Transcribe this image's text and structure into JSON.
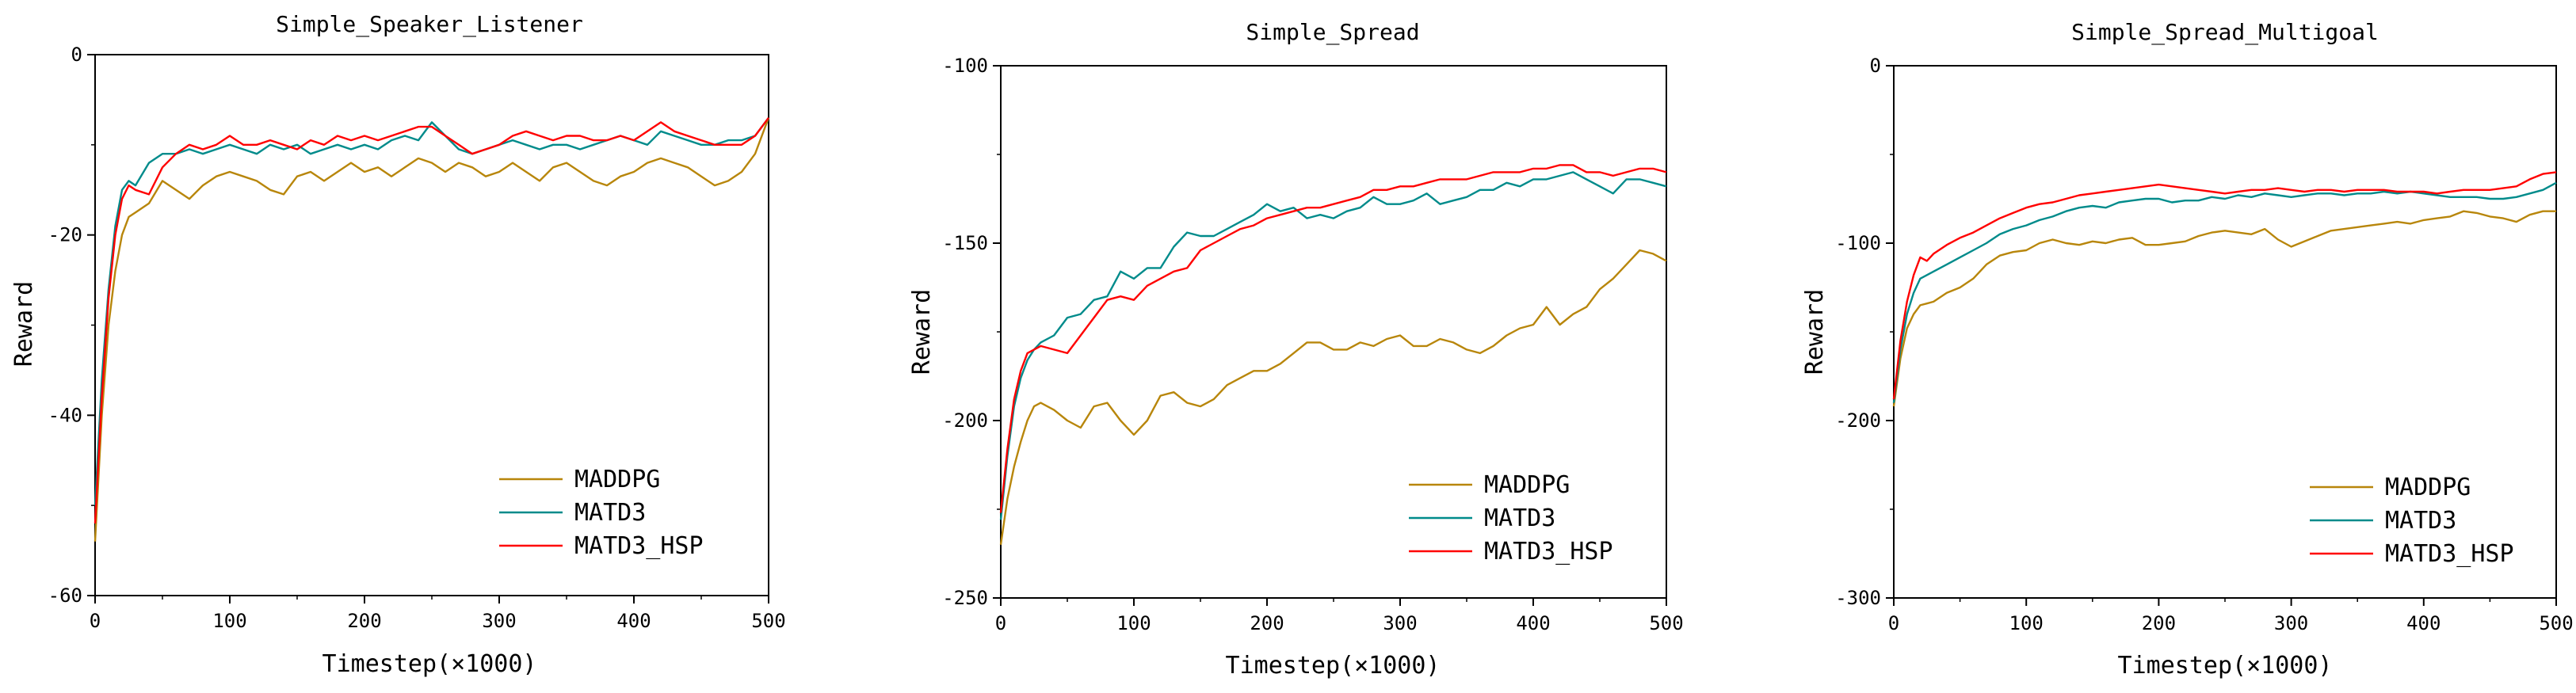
{
  "series_styles": [
    {
      "name": "MADDPG",
      "color": "#b8860b"
    },
    {
      "name": "MATD3",
      "color": "#008b8b"
    },
    {
      "name": "MATD3_HSP",
      "color": "#ff0000"
    }
  ],
  "chart_data": [
    {
      "type": "line",
      "title": "Simple_Speaker_Listener",
      "xlabel": "Timestep(×1000)",
      "ylabel": "Reward",
      "xlim": [
        0,
        500
      ],
      "ylim": [
        -60,
        0
      ],
      "xticks": [
        0,
        100,
        200,
        300,
        400,
        500
      ],
      "yticks": [
        -60,
        -40,
        -20,
        0
      ],
      "legend": "bottom-right",
      "series": [
        {
          "name": "MADDPG",
          "x": [
            0,
            5,
            10,
            15,
            20,
            25,
            30,
            40,
            50,
            60,
            70,
            80,
            90,
            100,
            110,
            120,
            130,
            140,
            150,
            160,
            170,
            180,
            190,
            200,
            210,
            220,
            230,
            240,
            250,
            260,
            270,
            280,
            290,
            300,
            310,
            320,
            330,
            340,
            350,
            360,
            370,
            380,
            390,
            400,
            410,
            420,
            430,
            440,
            450,
            460,
            470,
            480,
            490,
            500
          ],
          "values": [
            -54,
            -40,
            -30,
            -24,
            -20,
            -18,
            -17.5,
            -16.5,
            -14,
            -15,
            -16,
            -14.5,
            -13.5,
            -13,
            -13.5,
            -14,
            -15,
            -15.5,
            -13.5,
            -13,
            -14,
            -13,
            -12,
            -13,
            -12.5,
            -13.5,
            -12.5,
            -11.5,
            -12,
            -13,
            -12,
            -12.5,
            -13.5,
            -13,
            -12,
            -13,
            -14,
            -12.5,
            -12,
            -13,
            -14,
            -14.5,
            -13.5,
            -13,
            -12,
            -11.5,
            -12,
            -12.5,
            -13.5,
            -14.5,
            -14,
            -13,
            -11,
            -7
          ]
        },
        {
          "name": "MATD3",
          "x": [
            0,
            5,
            10,
            15,
            20,
            25,
            30,
            40,
            50,
            60,
            70,
            80,
            90,
            100,
            110,
            120,
            130,
            140,
            150,
            160,
            170,
            180,
            190,
            200,
            210,
            220,
            230,
            240,
            250,
            260,
            270,
            280,
            290,
            300,
            310,
            320,
            330,
            340,
            350,
            360,
            370,
            380,
            390,
            400,
            410,
            420,
            430,
            440,
            450,
            460,
            470,
            480,
            490,
            500
          ],
          "values": [
            -50,
            -36,
            -26,
            -19,
            -15,
            -14,
            -14.5,
            -12,
            -11,
            -11,
            -10.5,
            -11,
            -10.5,
            -10,
            -10.5,
            -11,
            -10,
            -10.5,
            -10,
            -11,
            -10.5,
            -10,
            -10.5,
            -10,
            -10.5,
            -9.5,
            -9,
            -9.5,
            -7.5,
            -9,
            -10.5,
            -11,
            -10.5,
            -10,
            -9.5,
            -10,
            -10.5,
            -10,
            -10,
            -10.5,
            -10,
            -9.5,
            -9,
            -9.5,
            -10,
            -8.5,
            -9,
            -9.5,
            -10,
            -10,
            -9.5,
            -9.5,
            -9,
            -7
          ]
        },
        {
          "name": "MATD3_HSP",
          "x": [
            0,
            5,
            10,
            15,
            20,
            25,
            30,
            40,
            50,
            60,
            70,
            80,
            90,
            100,
            110,
            120,
            130,
            140,
            150,
            160,
            170,
            180,
            190,
            200,
            210,
            220,
            230,
            240,
            250,
            260,
            270,
            280,
            290,
            300,
            310,
            320,
            330,
            340,
            350,
            360,
            370,
            380,
            390,
            400,
            410,
            420,
            430,
            440,
            450,
            460,
            470,
            480,
            490,
            500
          ],
          "values": [
            -52,
            -38,
            -27,
            -20,
            -16,
            -14.5,
            -15,
            -15.5,
            -12.5,
            -11,
            -10,
            -10.5,
            -10,
            -9,
            -10,
            -10,
            -9.5,
            -10,
            -10.5,
            -9.5,
            -10,
            -9,
            -9.5,
            -9,
            -9.5,
            -9,
            -8.5,
            -8,
            -8,
            -9,
            -10,
            -11,
            -10.5,
            -10,
            -9,
            -8.5,
            -9,
            -9.5,
            -9,
            -9,
            -9.5,
            -9.5,
            -9,
            -9.5,
            -8.5,
            -7.5,
            -8.5,
            -9,
            -9.5,
            -10,
            -10,
            -10,
            -9,
            -7
          ]
        }
      ]
    },
    {
      "type": "line",
      "title": "Simple_Spread",
      "xlabel": "Timestep(×1000)",
      "ylabel": "Reward",
      "xlim": [
        0,
        500
      ],
      "ylim": [
        -250,
        -100
      ],
      "xticks": [
        0,
        100,
        200,
        300,
        400,
        500
      ],
      "yticks": [
        -250,
        -200,
        -150,
        -100
      ],
      "legend": "bottom-right",
      "series": [
        {
          "name": "MADDPG",
          "x": [
            0,
            5,
            10,
            15,
            20,
            25,
            30,
            40,
            50,
            60,
            70,
            80,
            90,
            100,
            110,
            120,
            130,
            140,
            150,
            160,
            170,
            180,
            190,
            200,
            210,
            220,
            230,
            240,
            250,
            260,
            270,
            280,
            290,
            300,
            310,
            320,
            330,
            340,
            350,
            360,
            370,
            380,
            390,
            400,
            410,
            420,
            430,
            440,
            450,
            460,
            470,
            480,
            490,
            500
          ],
          "values": [
            -235,
            -222,
            -213,
            -206,
            -200,
            -196,
            -195,
            -197,
            -200,
            -202,
            -196,
            -195,
            -200,
            -204,
            -200,
            -193,
            -192,
            -195,
            -196,
            -194,
            -190,
            -188,
            -186,
            -186,
            -184,
            -181,
            -178,
            -178,
            -180,
            -180,
            -178,
            -179,
            -177,
            -176,
            -179,
            -179,
            -177,
            -178,
            -180,
            -181,
            -179,
            -176,
            -174,
            -173,
            -168,
            -173,
            -170,
            -168,
            -163,
            -160,
            -156,
            -152,
            -153,
            -155
          ]
        },
        {
          "name": "MATD3",
          "x": [
            0,
            5,
            10,
            15,
            20,
            25,
            30,
            40,
            50,
            60,
            70,
            80,
            90,
            100,
            110,
            120,
            130,
            140,
            150,
            160,
            170,
            180,
            190,
            200,
            210,
            220,
            230,
            240,
            250,
            260,
            270,
            280,
            290,
            300,
            310,
            320,
            330,
            340,
            350,
            360,
            370,
            380,
            390,
            400,
            410,
            420,
            430,
            440,
            450,
            460,
            470,
            480,
            490,
            500
          ],
          "values": [
            -228,
            -210,
            -196,
            -188,
            -183,
            -180,
            -178,
            -176,
            -171,
            -170,
            -166,
            -165,
            -158,
            -160,
            -157,
            -157,
            -151,
            -147,
            -148,
            -148,
            -146,
            -144,
            -142,
            -139,
            -141,
            -140,
            -143,
            -142,
            -143,
            -141,
            -140,
            -137,
            -139,
            -139,
            -138,
            -136,
            -139,
            -138,
            -137,
            -135,
            -135,
            -133,
            -134,
            -132,
            -132,
            -131,
            -130,
            -132,
            -134,
            -136,
            -132,
            -132,
            -133,
            -134
          ]
        },
        {
          "name": "MATD3_HSP",
          "x": [
            0,
            5,
            10,
            15,
            20,
            25,
            30,
            40,
            50,
            60,
            70,
            80,
            90,
            100,
            110,
            120,
            130,
            140,
            150,
            160,
            170,
            180,
            190,
            200,
            210,
            220,
            230,
            240,
            250,
            260,
            270,
            280,
            290,
            300,
            310,
            320,
            330,
            340,
            350,
            360,
            370,
            380,
            390,
            400,
            410,
            420,
            430,
            440,
            450,
            460,
            470,
            480,
            490,
            500
          ],
          "values": [
            -226,
            -208,
            -194,
            -186,
            -181,
            -180,
            -179,
            -180,
            -181,
            -176,
            -171,
            -166,
            -165,
            -166,
            -162,
            -160,
            -158,
            -157,
            -152,
            -150,
            -148,
            -146,
            -145,
            -143,
            -142,
            -141,
            -140,
            -140,
            -139,
            -138,
            -137,
            -135,
            -135,
            -134,
            -134,
            -133,
            -132,
            -132,
            -132,
            -131,
            -130,
            -130,
            -130,
            -129,
            -129,
            -128,
            -128,
            -130,
            -130,
            -131,
            -130,
            -129,
            -129,
            -130
          ]
        }
      ]
    },
    {
      "type": "line",
      "title": "Simple_Spread_Multigoal",
      "xlabel": "Timestep(×1000)",
      "ylabel": "Reward",
      "xlim": [
        0,
        500
      ],
      "ylim": [
        -300,
        0
      ],
      "xticks": [
        0,
        100,
        200,
        300,
        400,
        500
      ],
      "yticks": [
        -300,
        -200,
        -100,
        0
      ],
      "legend": "bottom-right",
      "series": [
        {
          "name": "MADDPG",
          "x": [
            0,
            5,
            10,
            15,
            20,
            25,
            30,
            40,
            50,
            60,
            70,
            80,
            90,
            100,
            110,
            120,
            130,
            140,
            150,
            160,
            170,
            180,
            190,
            200,
            210,
            220,
            230,
            240,
            250,
            260,
            270,
            280,
            290,
            300,
            310,
            320,
            330,
            340,
            350,
            360,
            370,
            380,
            390,
            400,
            410,
            420,
            430,
            440,
            450,
            460,
            470,
            480,
            490,
            500
          ],
          "values": [
            -192,
            -165,
            -148,
            -140,
            -135,
            -134,
            -133,
            -128,
            -125,
            -120,
            -112,
            -107,
            -105,
            -104,
            -100,
            -98,
            -100,
            -101,
            -99,
            -100,
            -98,
            -97,
            -101,
            -101,
            -100,
            -99,
            -96,
            -94,
            -93,
            -94,
            -95,
            -92,
            -98,
            -102,
            -99,
            -96,
            -93,
            -92,
            -91,
            -90,
            -89,
            -88,
            -89,
            -87,
            -86,
            -85,
            -82,
            -83,
            -85,
            -86,
            -88,
            -84,
            -82,
            -82
          ]
        },
        {
          "name": "MATD3",
          "x": [
            0,
            5,
            10,
            15,
            20,
            25,
            30,
            40,
            50,
            60,
            70,
            80,
            90,
            100,
            110,
            120,
            130,
            140,
            150,
            160,
            170,
            180,
            190,
            200,
            210,
            220,
            230,
            240,
            250,
            260,
            270,
            280,
            290,
            300,
            310,
            320,
            330,
            340,
            350,
            360,
            370,
            380,
            390,
            400,
            410,
            420,
            430,
            440,
            450,
            460,
            470,
            480,
            490,
            500
          ],
          "values": [
            -190,
            -160,
            -140,
            -128,
            -120,
            -118,
            -116,
            -112,
            -108,
            -104,
            -100,
            -95,
            -92,
            -90,
            -87,
            -85,
            -82,
            -80,
            -79,
            -80,
            -77,
            -76,
            -75,
            -75,
            -77,
            -76,
            -76,
            -74,
            -75,
            -73,
            -74,
            -72,
            -73,
            -74,
            -73,
            -72,
            -72,
            -73,
            -72,
            -72,
            -71,
            -72,
            -71,
            -72,
            -73,
            -74,
            -74,
            -74,
            -75,
            -75,
            -74,
            -72,
            -70,
            -66
          ]
        },
        {
          "name": "MATD3_HSP",
          "x": [
            0,
            5,
            10,
            15,
            20,
            25,
            30,
            40,
            50,
            60,
            70,
            80,
            90,
            100,
            110,
            120,
            130,
            140,
            150,
            160,
            170,
            180,
            190,
            200,
            210,
            220,
            230,
            240,
            250,
            260,
            270,
            280,
            290,
            300,
            310,
            320,
            330,
            340,
            350,
            360,
            370,
            380,
            390,
            400,
            410,
            420,
            430,
            440,
            450,
            460,
            470,
            480,
            490,
            500
          ],
          "values": [
            -188,
            -155,
            -133,
            -118,
            -108,
            -110,
            -106,
            -101,
            -97,
            -94,
            -90,
            -86,
            -83,
            -80,
            -78,
            -77,
            -75,
            -73,
            -72,
            -71,
            -70,
            -69,
            -68,
            -67,
            -68,
            -69,
            -70,
            -71,
            -72,
            -71,
            -70,
            -70,
            -69,
            -70,
            -71,
            -70,
            -70,
            -71,
            -70,
            -70,
            -70,
            -71,
            -71,
            -71,
            -72,
            -71,
            -70,
            -70,
            -70,
            -69,
            -68,
            -64,
            -61,
            -60
          ]
        }
      ]
    }
  ]
}
